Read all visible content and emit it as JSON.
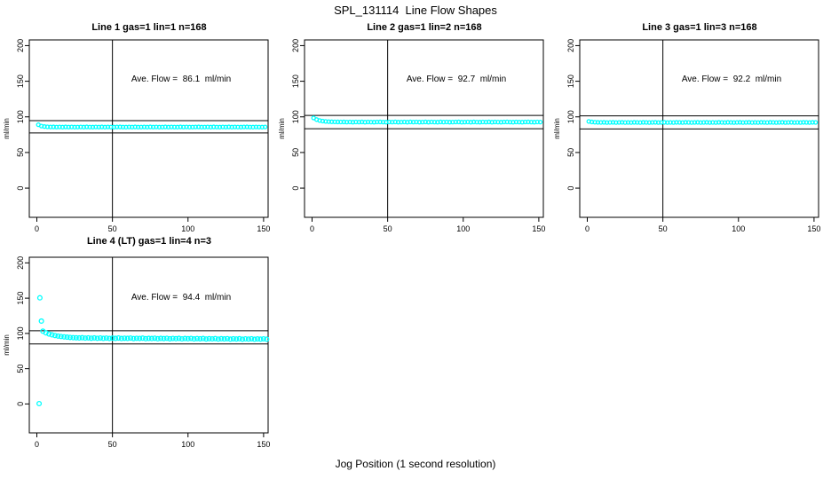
{
  "page": {
    "title": "SPL_131114  Line Flow Shapes",
    "xlabel": "Jog Position (1 second resolution)"
  },
  "colors": {
    "point": "#00FFFF",
    "axis": "#000000",
    "background": "#FFFFFF"
  },
  "chart_data": [
    {
      "type": "scatter",
      "title": "Line 1 gas=1 lin=1 n=168",
      "annotation": "Ave. Flow =  86.1  ml/min",
      "ave_flow": 86.1,
      "n": 168,
      "ylabel": "ml/min",
      "xlim": [
        -5,
        153
      ],
      "ylim": [
        -41,
        208
      ],
      "x_ticks": [
        0,
        50,
        100,
        150
      ],
      "y_ticks": [
        0,
        50,
        100,
        150,
        200
      ],
      "vline_x": 50,
      "ref_lines_y": [
        94.7,
        77.5
      ],
      "marker": {
        "r": 2,
        "color": "#00FFFF"
      },
      "x_start": 1,
      "x_step": 2,
      "y": [
        89.0,
        87.1,
        86.4,
        86.0,
        85.8,
        85.9,
        85.7,
        85.8,
        85.6,
        85.9,
        85.7,
        85.8,
        85.6,
        85.7,
        85.8,
        85.6,
        85.9,
        85.7,
        85.6,
        85.8,
        85.7,
        85.9,
        85.6,
        85.8,
        85.7,
        85.6,
        85.8,
        85.9,
        85.7,
        85.6,
        85.8,
        85.7,
        85.9,
        85.6,
        85.7,
        85.8,
        85.6,
        85.9,
        85.7,
        85.8,
        85.6,
        85.7,
        85.9,
        85.6,
        85.8,
        85.7,
        85.6,
        85.9,
        85.7,
        85.8,
        85.6,
        85.7,
        85.8,
        85.9,
        85.6,
        85.7,
        85.8,
        85.6,
        85.9,
        85.7,
        85.6,
        85.8,
        85.7,
        85.9,
        85.6,
        85.8,
        85.7,
        85.6,
        85.8,
        85.9,
        85.7,
        85.6,
        85.8,
        85.7,
        85.6,
        85.8
      ],
      "outliers": []
    },
    {
      "type": "scatter",
      "title": "Line 2 gas=1 lin=2 n=168",
      "annotation": "Ave. Flow =  92.7  ml/min",
      "ave_flow": 92.7,
      "n": 168,
      "ylabel": "ml/min",
      "xlim": [
        -5,
        153
      ],
      "ylim": [
        -41,
        208
      ],
      "x_ticks": [
        0,
        50,
        100,
        150
      ],
      "y_ticks": [
        0,
        50,
        100,
        150,
        200
      ],
      "vline_x": 50,
      "ref_lines_y": [
        102.0,
        83.4
      ],
      "marker": {
        "r": 2,
        "color": "#00FFFF"
      },
      "x_start": 1,
      "x_step": 2,
      "y": [
        98.5,
        96.2,
        94.9,
        94.1,
        93.6,
        93.3,
        93.1,
        93.0,
        92.9,
        92.8,
        92.9,
        92.7,
        92.8,
        92.6,
        92.8,
        92.7,
        92.9,
        92.6,
        92.8,
        92.7,
        92.6,
        92.8,
        92.9,
        92.7,
        92.6,
        92.8,
        92.7,
        92.9,
        92.6,
        92.7,
        92.8,
        92.6,
        92.9,
        92.7,
        92.8,
        92.6,
        92.7,
        92.9,
        92.6,
        92.8,
        92.7,
        92.6,
        92.9,
        92.7,
        92.8,
        92.6,
        92.7,
        92.8,
        92.9,
        92.6,
        92.7,
        92.8,
        92.6,
        92.9,
        92.7,
        92.6,
        92.8,
        92.7,
        92.9,
        92.6,
        92.8,
        92.7,
        92.6,
        92.8,
        92.9,
        92.7,
        92.6,
        92.8,
        92.7,
        92.6,
        92.8,
        92.9,
        92.7,
        92.6,
        92.8,
        92.7
      ],
      "outliers": []
    },
    {
      "type": "scatter",
      "title": "Line 3 gas=1 lin=3 n=168",
      "annotation": "Ave. Flow =  92.2  ml/min",
      "ave_flow": 92.2,
      "n": 168,
      "ylabel": "ml/min",
      "xlim": [
        -5,
        153
      ],
      "ylim": [
        -41,
        208
      ],
      "x_ticks": [
        0,
        50,
        100,
        150
      ],
      "y_ticks": [
        0,
        50,
        100,
        150,
        200
      ],
      "vline_x": 50,
      "ref_lines_y": [
        101.4,
        83.0
      ],
      "marker": {
        "r": 2,
        "color": "#00FFFF"
      },
      "x_start": 1,
      "x_step": 2,
      "y": [
        93.6,
        92.9,
        92.5,
        92.3,
        92.2,
        92.3,
        92.1,
        92.2,
        92.3,
        92.1,
        92.2,
        92.3,
        92.1,
        92.2,
        92.1,
        92.3,
        92.2,
        92.1,
        92.3,
        92.2,
        92.1,
        92.2,
        92.3,
        92.1,
        92.2,
        92.3,
        92.1,
        92.2,
        92.1,
        92.3,
        92.2,
        92.1,
        92.3,
        92.2,
        92.1,
        92.2,
        92.3,
        92.1,
        92.2,
        92.3,
        92.1,
        92.2,
        92.1,
        92.3,
        92.2,
        92.1,
        92.3,
        92.2,
        92.1,
        92.2,
        92.3,
        92.1,
        92.2,
        92.3,
        92.1,
        92.2,
        92.1,
        92.3,
        92.2,
        92.1,
        92.3,
        92.2,
        92.1,
        92.2,
        92.3,
        92.1,
        92.2,
        92.3,
        92.1,
        92.2,
        92.1,
        92.3,
        92.2,
        92.1,
        92.3,
        92.2
      ],
      "outliers": []
    },
    {
      "type": "scatter",
      "title": "Line 4 (LT) gas=1 lin=4 n=3",
      "annotation": "Ave. Flow =  94.4  ml/min",
      "ave_flow": 94.4,
      "n": 3,
      "ylabel": "ml/min",
      "xlim": [
        -5,
        153
      ],
      "ylim": [
        -41,
        208
      ],
      "x_ticks": [
        0,
        50,
        100,
        150
      ],
      "y_ticks": [
        0,
        50,
        100,
        150,
        200
      ],
      "vline_x": 50,
      "ref_lines_y": [
        103.8,
        85.0
      ],
      "marker": {
        "r": 2.4,
        "color": "#00FFFF"
      },
      "x_start": 4,
      "x_step": 2,
      "y": [
        103.2,
        100.8,
        99.2,
        98.0,
        97.0,
        96.2,
        95.6,
        95.1,
        94.7,
        94.3,
        94.0,
        93.8,
        93.6,
        93.9,
        93.4,
        93.7,
        93.2,
        93.6,
        93.1,
        93.5,
        93.0,
        93.4,
        92.9,
        93.3,
        93.0,
        93.5,
        92.8,
        93.2,
        93.0,
        93.4,
        92.7,
        93.1,
        92.9,
        93.3,
        92.6,
        93.0,
        92.8,
        93.2,
        92.5,
        93.0,
        92.7,
        93.1,
        92.4,
        92.9,
        92.6,
        93.0,
        92.3,
        92.8,
        92.5,
        92.9,
        92.2,
        92.7,
        92.4,
        92.8,
        92.1,
        92.6,
        92.3,
        92.7,
        92.0,
        92.5,
        92.2,
        92.6,
        91.9,
        92.4,
        92.1,
        92.5,
        91.8,
        92.3,
        92.0,
        92.4,
        91.7,
        92.2,
        91.9,
        92.3,
        91.8
      ],
      "outliers": [
        [
          1.5,
          0.5
        ],
        [
          2.0,
          150.5
        ],
        [
          3.0,
          117.5
        ]
      ]
    }
  ]
}
